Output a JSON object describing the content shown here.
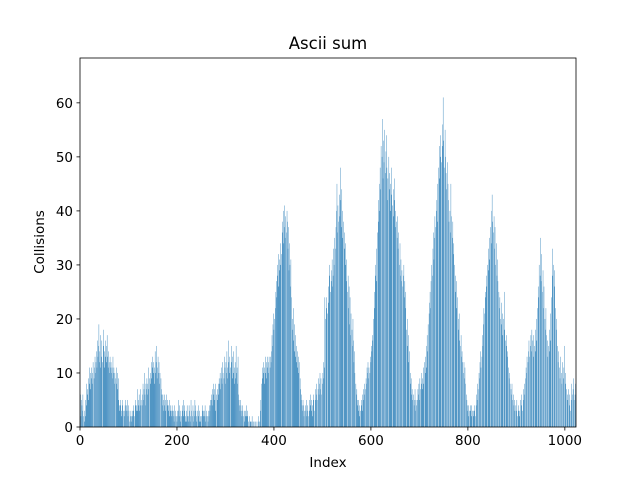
{
  "chart_data": {
    "type": "bar",
    "title": "Ascii sum",
    "x_label": "Index",
    "y_label": "Collisions",
    "color": "#1f77b4",
    "xlim": [
      0,
      1023
    ],
    "xticks": [
      0,
      200,
      400,
      600,
      800,
      1000
    ],
    "ylim": [
      0,
      68.3
    ],
    "yticks": [
      0,
      10,
      20,
      30,
      40,
      50,
      60
    ],
    "values": [
      3,
      6,
      2,
      5,
      4,
      3,
      6,
      2,
      0,
      1,
      3,
      5,
      2,
      4,
      8,
      6,
      7,
      5,
      9,
      8,
      11,
      7,
      10,
      9,
      11,
      8,
      10,
      12,
      0,
      9,
      11,
      13,
      10,
      12,
      14,
      11,
      16,
      13,
      15,
      19,
      12,
      14,
      17,
      11,
      13,
      16,
      0,
      12,
      15,
      18,
      14,
      11,
      13,
      16,
      12,
      15,
      17,
      13,
      11,
      14,
      12,
      10,
      13,
      11,
      12,
      10,
      11,
      9,
      13,
      10,
      11,
      8,
      10,
      0,
      9,
      11,
      8,
      10,
      7,
      9,
      5,
      4,
      3,
      5,
      4,
      2,
      3,
      5,
      4,
      3,
      0,
      2,
      3,
      4,
      5,
      3,
      4,
      3,
      5,
      2,
      4,
      3,
      0,
      1,
      2,
      3,
      2,
      1,
      3,
      2,
      4,
      3,
      2,
      0,
      4,
      5,
      3,
      4,
      7,
      3,
      5,
      4,
      6,
      3,
      4,
      7,
      5,
      0,
      4,
      6,
      8,
      5,
      7,
      10,
      6,
      4,
      8,
      7,
      9,
      6,
      8,
      11,
      7,
      9,
      0,
      8,
      10,
      12,
      9,
      11,
      13,
      10,
      12,
      8,
      11,
      14,
      10,
      12,
      15,
      9,
      11,
      13,
      10,
      12,
      8,
      10,
      0,
      9,
      7,
      6,
      4,
      6,
      5,
      3,
      6,
      4,
      5,
      3,
      6,
      0,
      4,
      5,
      3,
      4,
      2,
      5,
      3,
      4,
      3,
      2,
      4,
      3,
      2,
      3,
      1,
      4,
      2,
      3,
      0,
      2,
      1,
      3,
      2,
      5,
      3,
      4,
      2,
      1,
      3,
      0,
      2,
      4,
      3,
      5,
      2,
      4,
      3,
      1,
      2,
      3,
      1,
      4,
      2,
      1,
      2,
      4,
      3,
      1,
      2,
      5,
      3,
      0,
      2,
      4,
      1,
      3,
      2,
      5,
      4,
      3,
      1,
      2,
      0,
      3,
      2,
      4,
      1,
      3,
      2,
      1,
      0,
      2,
      3,
      4,
      2,
      3,
      3,
      2,
      4,
      1,
      2,
      3,
      0,
      2,
      1,
      3,
      2,
      4,
      3,
      5,
      4,
      6,
      5,
      7,
      4,
      8,
      6,
      5,
      7,
      3,
      8,
      6,
      0,
      7,
      5,
      8,
      6,
      9,
      8,
      10,
      7,
      9,
      11,
      8,
      12,
      10,
      0,
      9,
      13,
      11,
      8,
      12,
      10,
      14,
      9,
      11,
      16,
      12,
      10,
      13,
      0,
      11,
      15,
      12,
      9,
      13,
      10,
      14,
      11,
      8,
      12,
      9,
      15,
      10,
      11,
      8,
      13,
      6,
      5,
      4,
      3,
      5,
      4,
      3,
      2,
      4,
      3,
      0,
      2,
      3,
      1,
      2,
      3,
      2,
      4,
      3,
      2,
      0,
      1,
      2,
      0,
      1,
      1,
      0,
      1,
      2,
      0,
      1,
      0,
      1,
      0,
      0,
      1,
      0,
      0,
      1,
      0,
      0,
      2,
      1,
      0,
      1,
      3,
      5,
      0,
      8,
      11,
      9,
      10,
      12,
      8,
      11,
      13,
      10,
      12,
      9,
      11,
      13,
      10,
      12,
      13,
      0,
      11,
      13,
      12,
      14,
      17,
      15,
      19,
      21,
      18,
      20,
      0,
      22,
      25,
      27,
      24,
      30,
      28,
      32,
      26,
      31,
      29,
      34,
      30,
      0,
      32,
      36,
      38,
      34,
      40,
      37,
      41,
      35,
      39,
      0,
      36,
      40,
      38,
      33,
      37,
      29,
      34,
      30,
      26,
      31,
      24,
      0,
      20,
      18,
      22,
      16,
      19,
      14,
      17,
      13,
      15,
      12,
      14,
      11,
      13,
      10,
      12,
      0,
      9,
      7,
      5,
      6,
      4,
      3,
      5,
      4,
      2,
      3,
      0,
      4,
      3,
      5,
      2,
      4,
      3,
      2,
      0,
      3,
      5,
      4,
      6,
      3,
      5,
      2,
      4,
      6,
      5,
      0,
      3,
      5,
      7,
      6,
      8,
      5,
      0,
      7,
      9,
      6,
      8,
      10,
      7,
      9,
      6,
      0,
      8,
      10,
      12,
      9,
      11,
      24,
      0,
      20,
      22,
      24,
      0,
      21,
      23,
      26,
      30,
      28,
      25,
      0,
      27,
      29,
      31,
      26,
      28,
      33,
      30,
      35,
      0,
      33,
      37,
      40,
      45,
      36,
      41,
      38,
      0,
      43,
      39,
      48,
      42,
      37,
      44,
      40,
      35,
      0,
      38,
      33,
      36,
      30,
      34,
      27,
      31,
      0,
      25,
      28,
      22,
      26,
      19,
      24,
      17,
      21,
      0,
      18,
      15,
      20,
      16,
      12,
      14,
      10,
      0,
      8,
      6,
      7,
      5,
      4,
      3,
      5,
      4,
      2,
      3,
      0,
      4,
      5,
      3,
      6,
      5,
      7,
      6,
      8,
      0,
      7,
      9,
      8,
      11,
      10,
      12,
      9,
      11,
      0,
      10,
      13,
      12,
      15,
      14,
      17,
      16,
      20,
      0,
      22,
      25,
      28,
      30,
      27,
      33,
      36,
      0,
      38,
      42,
      40,
      45,
      48,
      44,
      52,
      0,
      50,
      57,
      46,
      53,
      49,
      55,
      0,
      47,
      51,
      54,
      48,
      42,
      46,
      0,
      50,
      44,
      47,
      45,
      40,
      43,
      48,
      41,
      0,
      44,
      39,
      42,
      46,
      37,
      40,
      0,
      38,
      35,
      39,
      33,
      36,
      0,
      30,
      34,
      28,
      31,
      27,
      29,
      0,
      26,
      28,
      30,
      24,
      27,
      22,
      25,
      0,
      18,
      20,
      15,
      17,
      12,
      14,
      0,
      10,
      8,
      9,
      6,
      7,
      5,
      0,
      6,
      4,
      5,
      7,
      3,
      5,
      4,
      0,
      5,
      7,
      6,
      8,
      5,
      9,
      7,
      0,
      8,
      10,
      7,
      9,
      11,
      8,
      12,
      0,
      10,
      13,
      11,
      15,
      17,
      14,
      19,
      0,
      21,
      23,
      25,
      22,
      27,
      30,
      0,
      28,
      33,
      36,
      31,
      35,
      39,
      0,
      37,
      40,
      42,
      38,
      45,
      0,
      48,
      52,
      46,
      50,
      54,
      49,
      0,
      52,
      56,
      61,
      53,
      48,
      0,
      55,
      50,
      47,
      44,
      0,
      49,
      45,
      42,
      38,
      0,
      40,
      36,
      45,
      39,
      0,
      35,
      38,
      32,
      34,
      0,
      30,
      28,
      25,
      27,
      22,
      0,
      24,
      20,
      18,
      21,
      16,
      0,
      15,
      17,
      13,
      14,
      12,
      0,
      10,
      12,
      9,
      11,
      8,
      0,
      6,
      5,
      4,
      3,
      4,
      2,
      3,
      0,
      4,
      3,
      2,
      4,
      3,
      0,
      2,
      3,
      4,
      3,
      2,
      0,
      4,
      6,
      5,
      8,
      7,
      0,
      10,
      9,
      12,
      14,
      11,
      0,
      13,
      17,
      15,
      19,
      22,
      0,
      21,
      25,
      24,
      28,
      26,
      0,
      30,
      29,
      33,
      35,
      31,
      0,
      37,
      34,
      40,
      43,
      38,
      0,
      36,
      39,
      33,
      37,
      30,
      0,
      34,
      28,
      31,
      27,
      0,
      25,
      22,
      24,
      20,
      0,
      23,
      19,
      21,
      17,
      0,
      20,
      25,
      18,
      16,
      0,
      15,
      17,
      13,
      14,
      0,
      11,
      9,
      10,
      8,
      0,
      7,
      6,
      8,
      5,
      0,
      6,
      4,
      5,
      3,
      0,
      4,
      3,
      5,
      2,
      0,
      3,
      4,
      2,
      3,
      0,
      5,
      4,
      6,
      3,
      0,
      5,
      7,
      6,
      8,
      0,
      9,
      11,
      10,
      13,
      0,
      12,
      14,
      16,
      13,
      0,
      15,
      17,
      14,
      18,
      0,
      16,
      13,
      17,
      15,
      0,
      18,
      14,
      16,
      20,
      0,
      22,
      26,
      24,
      30,
      0,
      28,
      35,
      27,
      32,
      0,
      25,
      29,
      22,
      26,
      0,
      20,
      18,
      22,
      17,
      0,
      16,
      13,
      15,
      0,
      18,
      14,
      16,
      21,
      0,
      24,
      28,
      33,
      0,
      30,
      26,
      29,
      0,
      22,
      18,
      20,
      0,
      15,
      12,
      14,
      0,
      11,
      9,
      13,
      0,
      10,
      8,
      12,
      0,
      9,
      11,
      15,
      0,
      10,
      8,
      7,
      0,
      6,
      5,
      7,
      0,
      4,
      6,
      3,
      0,
      5,
      8,
      6,
      0,
      7,
      9,
      5,
      0,
      6,
      8,
      7
    ]
  }
}
